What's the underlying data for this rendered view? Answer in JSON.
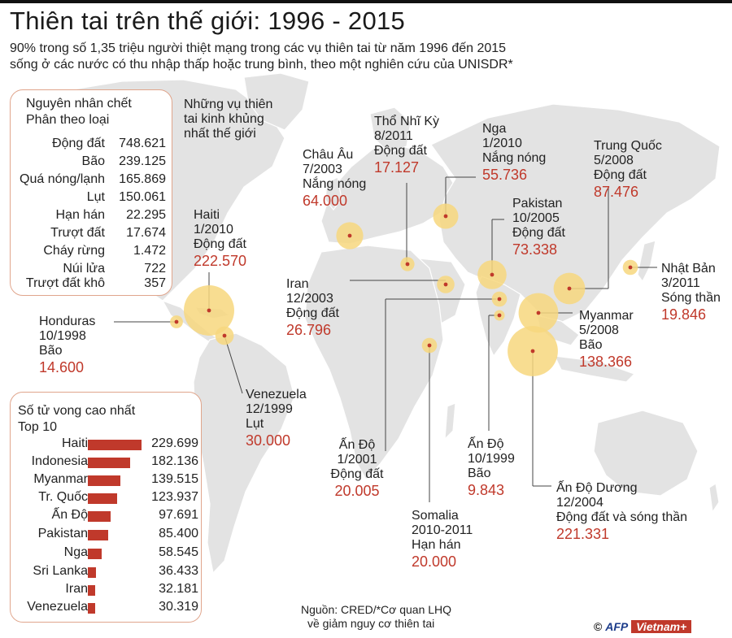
{
  "title": "Thiên tai trên thế giới: 1996 - 2015",
  "subtitle": {
    "line1": "90% trong số 1,35 triệu người thiệt mạng trong các vụ thiên tai từ năm 1996 đến 2015",
    "line2": "sống ở các nước có thu nhập thấp hoặc trung bình, theo một nghiên cứu của UNISDR*"
  },
  "colors": {
    "accent_red": "#c0392b",
    "bubble": "#f7d77e",
    "map_land": "#e3e3e3",
    "box_border": "#e0a58c"
  },
  "causes": {
    "heading1": "Nguyên nhân chết",
    "heading2": "Phân theo loại",
    "rows": [
      {
        "name": "Động đất",
        "value": "748.621"
      },
      {
        "name": "Bão",
        "value": "239.125"
      },
      {
        "name": "Quá nóng/lạnh",
        "value": "165.869"
      },
      {
        "name": "Lụt",
        "value": "150.061"
      },
      {
        "name": "Hạn hán",
        "value": "22.295"
      },
      {
        "name": "Trượt đất",
        "value": "17.674"
      },
      {
        "name": "Cháy rừng",
        "value": "1.472"
      },
      {
        "name": "Núi lửa",
        "value": "722"
      },
      {
        "name": "Trượt đất khô",
        "value": "357"
      }
    ]
  },
  "worst_heading": {
    "line1": "Những vụ thiên",
    "line2": "tai kinh khủng",
    "line3": "nhất thế giới"
  },
  "events": [
    {
      "name": "Haiti",
      "date": "1/2010",
      "type": "Động đất",
      "deaths": "222.570",
      "deaths_n": 222570
    },
    {
      "name": "Honduras",
      "date": "10/1998",
      "type": "Bão",
      "deaths": "14.600",
      "deaths_n": 14600
    },
    {
      "name": "Venezuela",
      "date": "12/1999",
      "type": "Lụt",
      "deaths": "30.000",
      "deaths_n": 30000
    },
    {
      "name": "Châu Âu",
      "date": "7/2003",
      "type": "Nắng nóng",
      "deaths": "64.000",
      "deaths_n": 64000
    },
    {
      "name": "Thổ Nhĩ Kỳ",
      "date": "8/2011",
      "type": "Động đất",
      "deaths": "17.127",
      "deaths_n": 17127
    },
    {
      "name": "Nga",
      "date": "1/2010",
      "type": "Nắng nóng",
      "deaths": "55.736",
      "deaths_n": 55736
    },
    {
      "name": "Pakistan",
      "date": "10/2005",
      "type": "Động đất",
      "deaths": "73.338",
      "deaths_n": 73338
    },
    {
      "name": "Trung Quốc",
      "date": "5/2008",
      "type": "Động đất",
      "deaths": "87.476",
      "deaths_n": 87476
    },
    {
      "name": "Iran",
      "date": "12/2003",
      "type": "Động đất",
      "deaths": "26.796",
      "deaths_n": 26796
    },
    {
      "name": "Nhật Bản",
      "date": "3/2011",
      "type": "Sóng thần",
      "deaths": "19.846",
      "deaths_n": 19846
    },
    {
      "name": "Myanmar",
      "date": "5/2008",
      "type": "Bão",
      "deaths": "138.366",
      "deaths_n": 138366
    },
    {
      "name": "Ấn Độ",
      "date": "1/2001",
      "type": "Động đất",
      "deaths": "20.005",
      "deaths_n": 20005
    },
    {
      "name": "Ấn Độ",
      "date": "10/1999",
      "type": "Bão",
      "deaths": "9.843",
      "deaths_n": 9843
    },
    {
      "name": "Ấn Độ Dương",
      "date": "12/2004",
      "type": "Động đất và sóng thần",
      "deaths": "221.331",
      "deaths_n": 221331
    },
    {
      "name": "Somalia",
      "date": "2010-2011",
      "type": "Hạn hán",
      "deaths": "20.000",
      "deaths_n": 20000
    }
  ],
  "top10": {
    "heading1": "Số tử vong cao nhất",
    "heading2": "Top 10",
    "max": 229699,
    "rows": [
      {
        "name": "Haiti",
        "value": "229.699",
        "n": 229699
      },
      {
        "name": "Indonesia",
        "value": "182.136",
        "n": 182136
      },
      {
        "name": "Myanmar",
        "value": "139.515",
        "n": 139515
      },
      {
        "name": "Tr. Quốc",
        "value": "123.937",
        "n": 123937
      },
      {
        "name": "Ấn Độ",
        "value": "97.691",
        "n": 97691
      },
      {
        "name": "Pakistan",
        "value": "85.400",
        "n": 85400
      },
      {
        "name": "Nga",
        "value": "58.545",
        "n": 58545
      },
      {
        "name": "Sri Lanka",
        "value": "36.433",
        "n": 36433
      },
      {
        "name": "Iran",
        "value": "32.181",
        "n": 32181
      },
      {
        "name": "Venezuela",
        "value": "30.319",
        "n": 30319
      }
    ]
  },
  "source": {
    "line1": "Nguồn: CRED/*Cơ quan LHQ",
    "line2": "về giảm nguy cơ thiên tai"
  },
  "logo": {
    "copyright": "©",
    "afp": "AFP",
    "brand": "Vietnam+"
  }
}
